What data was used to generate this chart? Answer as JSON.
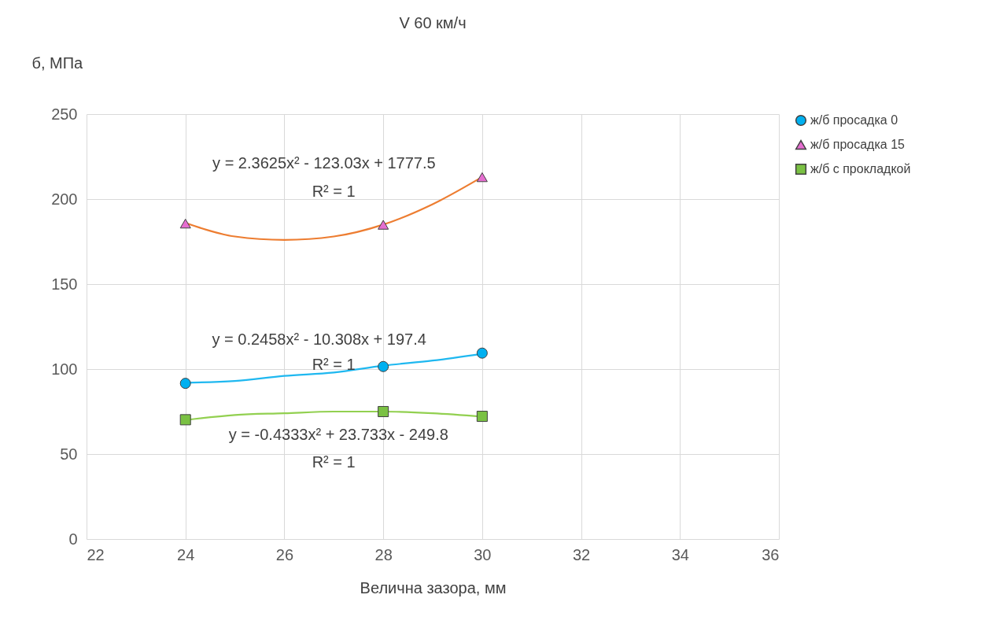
{
  "chart_data": {
    "type": "scatter",
    "title": "V 60 км/ч",
    "xlabel": "Велична зазора, мм",
    "ylabel": "б, МПа",
    "x": [
      24,
      28,
      30
    ],
    "series": [
      {
        "name": "ж/б просадка 0",
        "color": "#00b0f0",
        "marker": "circle",
        "values": [
          91.6,
          101.5,
          109.4
        ]
      },
      {
        "name": "ж/б просадка 15",
        "color": "#e56ed0",
        "marker": "triangle",
        "values": [
          185.6,
          184.9,
          212.9
        ]
      },
      {
        "name": "ж/б с прокладкой",
        "color": "#7ac143",
        "marker": "square",
        "values": [
          70.2,
          75.0,
          72.2
        ]
      },
      {
        "type": "line",
        "color": "#1fb8f0",
        "x": [
          24,
          25,
          26,
          27,
          28,
          29,
          30
        ],
        "values": [
          92,
          93,
          96,
          98,
          102,
          105,
          109
        ]
      },
      {
        "type": "line",
        "color": "#ed7d31",
        "x": [
          24,
          25,
          26,
          27,
          28,
          29,
          30
        ],
        "values": [
          186,
          178,
          176,
          178,
          185,
          197,
          213
        ]
      },
      {
        "type": "line",
        "color": "#92d050",
        "x": [
          24,
          25,
          26,
          27,
          28,
          29,
          30
        ],
        "values": [
          70,
          73,
          74,
          75,
          75,
          74,
          72
        ]
      }
    ],
    "xlim": [
      22,
      36
    ],
    "xticks": [
      22,
      24,
      26,
      28,
      30,
      32,
      34,
      36
    ],
    "ylim": [
      0,
      250
    ],
    "yticks": [
      0,
      50,
      100,
      150,
      200,
      250
    ],
    "grid": true,
    "legend": "right",
    "annotations": [
      "y = 2.3625x² - 123.03x + 1777.5",
      "R² = 1",
      "y = 0.2458x² - 10.308x + 197.4",
      "R² = 1",
      "y = -0.4333x² + 23.733x - 249.8",
      "R² = 1"
    ]
  }
}
